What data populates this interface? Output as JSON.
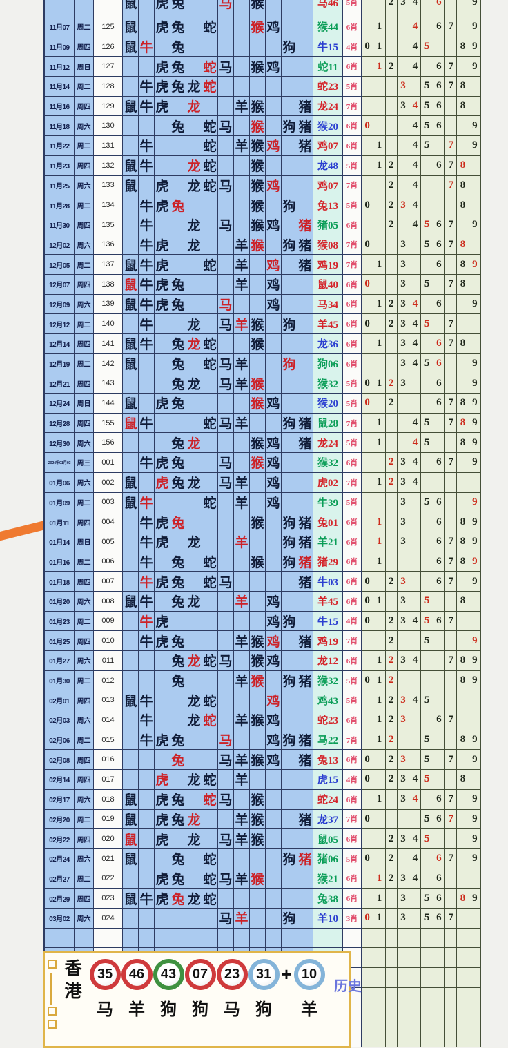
{
  "colors": {
    "cell_blue": "#abcbf0",
    "grid_navy": "#2e3c62",
    "digit_bg": "#e9efdc",
    "result_bg": "#d9f3ec",
    "red": "#cc2127",
    "result_green": "#0a9d57",
    "result_blue": "#2b3fd0",
    "result_red": "#d4262c",
    "xiao_pink": "#e1506e",
    "marker_orange": "#ef7a30",
    "banner_gold": "#e0b54a"
  },
  "zodiac_order": [
    "鼠",
    "牛",
    "虎",
    "兔",
    "龙",
    "蛇",
    "马",
    "羊",
    "猴",
    "鸡",
    "狗",
    "猪"
  ],
  "digit_order": [
    "0",
    "1",
    "2",
    "3",
    "4",
    "5",
    "6",
    "7",
    "8",
    "9"
  ],
  "table": {
    "rows": [
      {
        "date": "",
        "wd": "",
        "period": "",
        "animals": "n.nn..r.n...",
        "res": "马46",
        "resc": "r",
        "xiao": "5肖",
        "digits": "..nnn.r..n",
        "partial": true
      },
      {
        "date": "11月07",
        "wd": "周二",
        "period": "125",
        "animals": "n.nn.n..rn..",
        "res": "猴44",
        "resc": "g",
        "xiao": "6肖",
        "digits": ".n..r.nn.n"
      },
      {
        "date": "11月09",
        "wd": "周四",
        "period": "126",
        "animals": "nr.n......n.",
        "res": "牛15",
        "resc": "b",
        "xiao": "4肖",
        "digits": "nn..nr..nn"
      },
      {
        "date": "11月12",
        "wd": "周日",
        "period": "127",
        "animals": "..nn.rn.nn..",
        "res": "蛇11",
        "resc": "g",
        "xiao": "6肖",
        "digits": ".rn.n.nn.n"
      },
      {
        "date": "11月14",
        "wd": "周二",
        "period": "128",
        "animals": ".nnnnr......",
        "res": "蛇23",
        "resc": "r",
        "xiao": "5肖",
        "digits": "...r.nnnn."
      },
      {
        "date": "11月16",
        "wd": "周四",
        "period": "129",
        "animals": "nnn.r..nn..n",
        "res": "龙24",
        "resc": "r",
        "xiao": "7肖",
        "digits": "...nrnn.n."
      },
      {
        "date": "11月18",
        "wd": "周六",
        "period": "130",
        "animals": "...n.nn.r.nn",
        "res": "猴20",
        "resc": "b",
        "xiao": "6肖",
        "digits": "r...nnn..n"
      },
      {
        "date": "11月22",
        "wd": "周二",
        "period": "131",
        "animals": ".n...n.nnr.n",
        "res": "鸡07",
        "resc": "r",
        "xiao": "6肖",
        "digits": ".n..nn.r.n"
      },
      {
        "date": "11月23",
        "wd": "周四",
        "period": "132",
        "animals": "nn..rn..n...",
        "res": "龙48",
        "resc": "b",
        "xiao": "5肖",
        "digits": ".nn.n.nnr."
      },
      {
        "date": "11月25",
        "wd": "周六",
        "period": "133",
        "animals": "n.n.nnn.nr..",
        "res": "鸡07",
        "resc": "r",
        "xiao": "7肖",
        "digits": "..n.n..rn."
      },
      {
        "date": "11月28",
        "wd": "周二",
        "period": "134",
        "animals": ".nnr....n.n.",
        "res": "兔13",
        "resc": "r",
        "xiao": "5肖",
        "digits": "n.nrn...n."
      },
      {
        "date": "11月30",
        "wd": "周四",
        "period": "135",
        "animals": ".n..n.n.nn.r",
        "res": "猪05",
        "resc": "g",
        "xiao": "6肖",
        "digits": "..n.nrnn.n"
      },
      {
        "date": "12月02",
        "wd": "周六",
        "period": "136",
        "animals": ".nn.n..nr.nn",
        "res": "猴08",
        "resc": "r",
        "xiao": "7肖",
        "digits": "n..n.nnnr."
      },
      {
        "date": "12月05",
        "wd": "周二",
        "period": "137",
        "animals": "nnn..n.n.r.n",
        "res": "鸡19",
        "resc": "r",
        "xiao": "7肖",
        "digits": ".n.n..n.nr"
      },
      {
        "date": "12月07",
        "wd": "周四",
        "period": "138",
        "animals": "rnnn...n.n..",
        "res": "鼠40",
        "resc": "r",
        "xiao": "6肖",
        "digits": "r..n.n.nn."
      },
      {
        "date": "12月09",
        "wd": "周六",
        "period": "139",
        "animals": "nnnn..r..n..",
        "res": "马34",
        "resc": "r",
        "xiao": "6肖",
        "digits": ".nnnr.n..n"
      },
      {
        "date": "12月12",
        "wd": "周二",
        "period": "140",
        "animals": ".n..n.nrn.n.",
        "res": "羊45",
        "resc": "r",
        "xiao": "6肖",
        "digits": "n.nnnr.n.."
      },
      {
        "date": "12月14",
        "wd": "周四",
        "period": "141",
        "animals": "nn.nrn..n...",
        "res": "龙36",
        "resc": "b",
        "xiao": "6肖",
        "digits": ".n.nn.rnn."
      },
      {
        "date": "12月19",
        "wd": "周二",
        "period": "142",
        "animals": "n..n.nnn..r.",
        "res": "狗06",
        "resc": "g",
        "xiao": "6肖",
        "digits": "...nnnr..n"
      },
      {
        "date": "12月21",
        "wd": "周四",
        "period": "143",
        "animals": "...nn.nnr...",
        "res": "猴32",
        "resc": "g",
        "xiao": "5肖",
        "digits": "nnrn..n..n"
      },
      {
        "date": "12月24",
        "wd": "周日",
        "period": "144",
        "animals": "n.nn....rn..",
        "res": "猴20",
        "resc": "b",
        "xiao": "5肖",
        "digits": "r.n...nnnn"
      },
      {
        "date": "12月28",
        "wd": "周四",
        "period": "155",
        "animals": "rn...nnn..nn",
        "res": "鼠28",
        "resc": "g",
        "xiao": "7肖",
        "digits": ".n..nn.nrn"
      },
      {
        "date": "12月30",
        "wd": "周六",
        "period": "156",
        "animals": "...nr...nn.n",
        "res": "龙24",
        "resc": "r",
        "xiao": "5肖",
        "digits": ".n..rn..nn"
      },
      {
        "date": "2024年01月03",
        "wd": "周三",
        "period": "001",
        "animals": ".nnn..n.rn..",
        "res": "猴32",
        "resc": "g",
        "xiao": "6肖",
        "digits": "..rnn.nn.n",
        "sd": true
      },
      {
        "date": "01月06",
        "wd": "周六",
        "period": "002",
        "animals": "n.rnn.nn.n..",
        "res": "虎02",
        "resc": "r",
        "xiao": "7肖",
        "digits": ".nrnn....."
      },
      {
        "date": "01月09",
        "wd": "周二",
        "period": "003",
        "animals": "nr...n.n.n..",
        "res": "牛39",
        "resc": "g",
        "xiao": "5肖",
        "digits": "...n.nn..r"
      },
      {
        "date": "01月11",
        "wd": "周四",
        "period": "004",
        "animals": ".nnr....n.nn",
        "res": "兔01",
        "resc": "r",
        "xiao": "6肖",
        "digits": ".r.n..n.nn"
      },
      {
        "date": "01月14",
        "wd": "周日",
        "period": "005",
        "animals": ".nn.n..r..nn",
        "res": "羊21",
        "resc": "g",
        "xiao": "6肖",
        "digits": ".r.n..nnnn"
      },
      {
        "date": "01月16",
        "wd": "周二",
        "period": "006",
        "animals": ".n.n.n..n.nr",
        "res": "猪29",
        "resc": "r",
        "xiao": "6肖",
        "digits": ".n....nnnr"
      },
      {
        "date": "01月18",
        "wd": "周四",
        "period": "007",
        "animals": ".rnn.nn....n",
        "res": "牛03",
        "resc": "b",
        "xiao": "6肖",
        "digits": "n.nr..nn.n"
      },
      {
        "date": "01月20",
        "wd": "周六",
        "period": "008",
        "animals": "nn.nn..r.n..",
        "res": "羊45",
        "resc": "r",
        "xiao": "6肖",
        "digits": "nn.n.r..n."
      },
      {
        "date": "01月23",
        "wd": "周二",
        "period": "009",
        "animals": ".rn......nn.",
        "res": "牛15",
        "resc": "b",
        "xiao": "4肖",
        "digits": "n.nnnrnn.."
      },
      {
        "date": "01月25",
        "wd": "周四",
        "period": "010",
        "animals": ".nnn...nnr.n",
        "res": "鸡19",
        "resc": "r",
        "xiao": "7肖",
        "digits": "..n..n...r"
      },
      {
        "date": "01月27",
        "wd": "周六",
        "period": "011",
        "animals": "...nrnn.nn..",
        "res": "龙12",
        "resc": "r",
        "xiao": "6肖",
        "digits": ".nrnn..nnn"
      },
      {
        "date": "01月30",
        "wd": "周二",
        "period": "012",
        "animals": "...n...nr.nn",
        "res": "猴32",
        "resc": "g",
        "xiao": "5肖",
        "digits": "nnr.....nn"
      },
      {
        "date": "02月01",
        "wd": "周四",
        "period": "013",
        "animals": "nn..nn...r..",
        "res": "鸡43",
        "resc": "g",
        "xiao": "5肖",
        "digits": ".nnrnn...."
      },
      {
        "date": "02月03",
        "wd": "周六",
        "period": "014",
        "animals": ".n..nr.nnn..",
        "res": "蛇23",
        "resc": "r",
        "xiao": "6肖",
        "digits": ".nnr..nn.."
      },
      {
        "date": "02月06",
        "wd": "周二",
        "period": "015",
        "animals": ".nnn..r..nnn",
        "res": "马22",
        "resc": "g",
        "xiao": "7肖",
        "digits": ".nr..n..nn"
      },
      {
        "date": "02月08",
        "wd": "周四",
        "period": "016",
        "animals": "...r..nnnn.n",
        "res": "兔13",
        "resc": "r",
        "xiao": "6肖",
        "digits": "n.nr.n.n.n"
      },
      {
        "date": "02月14",
        "wd": "周四",
        "period": "017",
        "animals": "..r.nn.n....",
        "res": "虎15",
        "resc": "b",
        "xiao": "4肖",
        "digits": "n.nnnr..n."
      },
      {
        "date": "02月17",
        "wd": "周六",
        "period": "018",
        "animals": "n.nn.rn.n...",
        "res": "蛇24",
        "resc": "r",
        "xiao": "6肖",
        "digits": ".n.nr.nn.n"
      },
      {
        "date": "02月20",
        "wd": "周二",
        "period": "019",
        "animals": "n.nnr..nn..n",
        "res": "龙37",
        "resc": "b",
        "xiao": "7肖",
        "digits": "n....nnr.n"
      },
      {
        "date": "02月22",
        "wd": "周四",
        "period": "020",
        "animals": "r.n.n.nnn...",
        "res": "鼠05",
        "resc": "g",
        "xiao": "6肖",
        "digits": "..nnnr...n"
      },
      {
        "date": "02月24",
        "wd": "周六",
        "period": "021",
        "animals": "n..n.n....nr",
        "res": "猪06",
        "resc": "g",
        "xiao": "5肖",
        "digits": "n.n.n.rn.n"
      },
      {
        "date": "02月27",
        "wd": "周二",
        "period": "022",
        "animals": "..nn.nnnr...",
        "res": "猴21",
        "resc": "g",
        "xiao": "6肖",
        "digits": ".rnnn.n..."
      },
      {
        "date": "02月29",
        "wd": "周四",
        "period": "023",
        "animals": "nnnrnn......",
        "res": "兔38",
        "resc": "g",
        "xiao": "6肖",
        "digits": ".n.n.nn.rn"
      },
      {
        "date": "03月02",
        "wd": "周六",
        "period": "024",
        "animals": "......nr..n.",
        "res": "羊10",
        "resc": "b",
        "xiao": "3肖",
        "digits": "rn.n.nnn.."
      }
    ],
    "empty_rows": 6
  },
  "banner": {
    "region_chars": [
      "香",
      "港"
    ],
    "items": [
      {
        "num": "35",
        "color": "red",
        "animal": "马"
      },
      {
        "num": "46",
        "color": "red",
        "animal": "羊"
      },
      {
        "num": "43",
        "color": "green",
        "animal": "狗"
      },
      {
        "num": "07",
        "color": "red",
        "animal": "狗"
      },
      {
        "num": "23",
        "color": "red",
        "animal": "马"
      },
      {
        "num": "31",
        "color": "blue",
        "animal": "狗"
      },
      {
        "plus": "+"
      },
      {
        "num": "10",
        "color": "blue",
        "animal": "羊"
      }
    ],
    "history_label": "历史"
  }
}
